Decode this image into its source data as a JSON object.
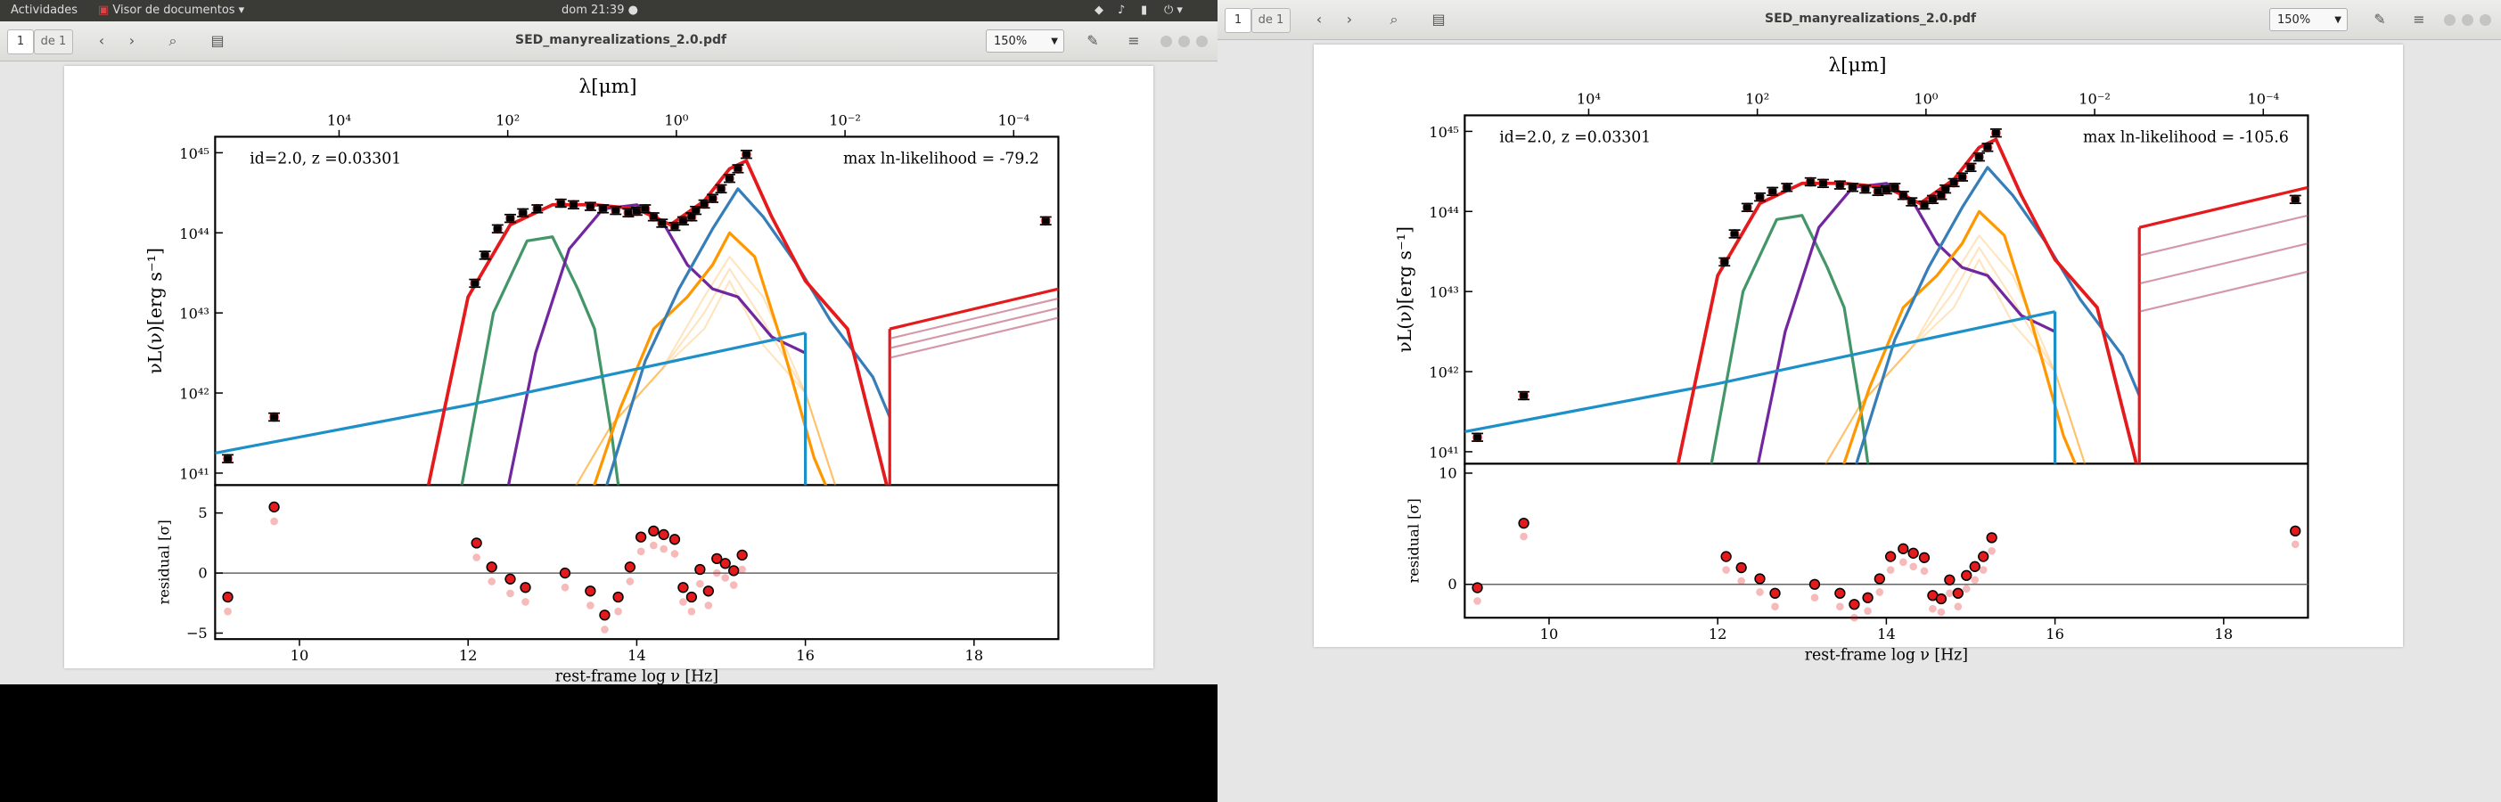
{
  "topbar": {
    "activities": "Actividades",
    "app_menu": "Visor de documentos",
    "clock": "dom 21:39"
  },
  "viewer": {
    "page_current": "1",
    "page_total": "de 1",
    "doc_title": "SED_manyrealizations_2.0.pdf",
    "zoom": "150%"
  },
  "colors": {
    "data_points": "#000000",
    "total_model": "#e41a1c",
    "agn_disk": "#377eb8",
    "host_galaxy": "#6a1b9a",
    "torus": "#ff9800",
    "starburst": "#2e8b57",
    "xray": "#1e90c8"
  },
  "plot_left": {
    "top_axis_label": "λ[μm]",
    "top_ticks": [
      "10⁴",
      "10²",
      "10⁰",
      "10⁻²",
      "10⁻⁴"
    ],
    "y_label": "νL(ν)[erg s⁻¹]",
    "y_ticks": [
      "10⁴⁵",
      "10⁴⁴",
      "10⁴³",
      "10⁴²",
      "10⁴¹"
    ],
    "annotation_left": "id=2.0, z =0.03301",
    "annotation_right": "max ln-likelihood = -79.2",
    "residual_label": "residual [σ]",
    "residual_ticks": [
      "5",
      "0",
      "−5"
    ],
    "x_label": "rest-frame log  ν [Hz]",
    "x_ticks": [
      "10",
      "12",
      "14",
      "16",
      "18"
    ]
  },
  "plot_right": {
    "top_axis_label": "λ[μm]",
    "top_ticks": [
      "10⁴",
      "10²",
      "10⁰",
      "10⁻²",
      "10⁻⁴"
    ],
    "y_label": "νL(ν)[erg s⁻¹]",
    "y_ticks": [
      "10⁴⁵",
      "10⁴⁴",
      "10⁴³",
      "10⁴²",
      "10⁴¹"
    ],
    "annotation_left": "id=2.0, z =0.03301",
    "annotation_right": "max ln-likelihood = -105.6",
    "residual_label": "residual [σ]",
    "residual_ticks": [
      "10",
      "0"
    ],
    "x_label": "rest-frame log  ν [Hz]",
    "x_ticks": [
      "10",
      "12",
      "14",
      "16",
      "18"
    ]
  },
  "chart_data": [
    {
      "type": "scatter",
      "annotation": "max ln-likelihood = -79.2",
      "xlabel": "rest-frame log  ν [Hz]",
      "ylabel": "νL(ν)[erg s⁻¹]",
      "xlim": [
        9,
        19
      ],
      "ylim_log10": [
        40.85,
        45.2
      ],
      "y_scale": "log",
      "series": [
        {
          "name": "data",
          "x": [
            9.15,
            9.7,
            12.08,
            12.2,
            12.35,
            12.5,
            12.65,
            12.82,
            13.1,
            13.25,
            13.45,
            13.6,
            13.75,
            13.9,
            14.0,
            14.1,
            14.2,
            14.3,
            14.45,
            14.55,
            14.65,
            14.7,
            14.8,
            14.9,
            15.0,
            15.1,
            15.2,
            15.3,
            18.85
          ],
          "log_y": [
            41.18,
            41.7,
            43.37,
            43.72,
            44.05,
            44.18,
            44.25,
            44.3,
            44.37,
            44.35,
            44.33,
            44.3,
            44.28,
            44.25,
            44.27,
            44.3,
            44.2,
            44.12,
            44.08,
            44.15,
            44.2,
            44.28,
            44.36,
            44.43,
            44.55,
            44.68,
            44.8,
            44.98,
            44.15
          ]
        }
      ],
      "residuals": {
        "ylim": [
          -5.5,
          7
        ],
        "x": [
          9.15,
          9.7,
          12.1,
          12.28,
          12.5,
          12.68,
          13.15,
          13.45,
          13.62,
          13.78,
          13.92,
          14.05,
          14.2,
          14.32,
          14.45,
          14.55,
          14.65,
          14.75,
          14.85,
          14.95,
          15.05,
          15.15,
          15.25
        ],
        "y": [
          -2,
          5.5,
          2.5,
          0.5,
          -0.5,
          -1.2,
          0,
          -1.5,
          -3.5,
          -2,
          0.5,
          3,
          3.5,
          3.2,
          2.8,
          -1.2,
          -2,
          0.3,
          -1.5,
          1.2,
          0.8,
          0.2,
          1.5
        ]
      }
    },
    {
      "type": "scatter",
      "annotation": "max ln-likelihood = -105.6",
      "xlabel": "rest-frame log  ν [Hz]",
      "ylabel": "νL(ν)[erg s⁻¹]",
      "xlim": [
        9,
        19
      ],
      "ylim_log10": [
        40.85,
        45.2
      ],
      "y_scale": "log",
      "series": [
        {
          "name": "data",
          "x": [
            9.15,
            9.7,
            12.08,
            12.2,
            12.35,
            12.5,
            12.65,
            12.82,
            13.1,
            13.25,
            13.45,
            13.6,
            13.75,
            13.9,
            14.0,
            14.1,
            14.2,
            14.3,
            14.45,
            14.55,
            14.65,
            14.7,
            14.8,
            14.9,
            15.0,
            15.1,
            15.2,
            15.3,
            18.85
          ],
          "log_y": [
            41.18,
            41.7,
            43.37,
            43.72,
            44.05,
            44.18,
            44.25,
            44.3,
            44.37,
            44.35,
            44.33,
            44.3,
            44.28,
            44.25,
            44.27,
            44.3,
            44.2,
            44.12,
            44.08,
            44.15,
            44.2,
            44.28,
            44.36,
            44.43,
            44.55,
            44.68,
            44.8,
            44.98,
            44.15
          ]
        }
      ],
      "residuals": {
        "ylim": [
          -3,
          10.5
        ],
        "x": [
          9.15,
          9.7,
          12.1,
          12.28,
          12.5,
          12.68,
          13.15,
          13.45,
          13.62,
          13.78,
          13.92,
          14.05,
          14.2,
          14.32,
          14.45,
          14.55,
          14.65,
          14.75,
          14.85,
          14.95,
          15.05,
          15.15,
          15.25,
          18.85
        ],
        "y": [
          -0.3,
          5.5,
          2.5,
          1.5,
          0.5,
          -0.8,
          0,
          -0.8,
          -1.8,
          -1.2,
          0.5,
          2.5,
          3.2,
          2.8,
          2.4,
          -1,
          -1.3,
          0.4,
          -0.8,
          0.8,
          1.6,
          2.5,
          4.2,
          4.8
        ]
      }
    }
  ]
}
